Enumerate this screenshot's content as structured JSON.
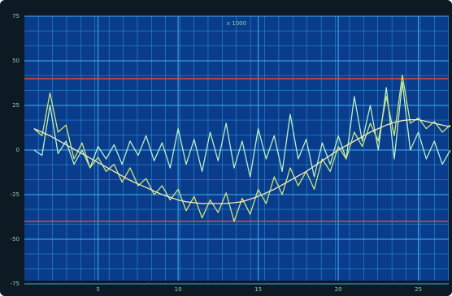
{
  "chart_data": {
    "type": "line",
    "title": "x 1000",
    "x": [
      1,
      1.5,
      2,
      2.5,
      3,
      3.5,
      4,
      4.5,
      5,
      5.5,
      6,
      6.5,
      7,
      7.5,
      8,
      8.5,
      9,
      9.5,
      10,
      10.5,
      11,
      11.5,
      12,
      12.5,
      13,
      13.5,
      14,
      14.5,
      15,
      15.5,
      16,
      16.5,
      17,
      17.5,
      18,
      18.5,
      19,
      19.5,
      20,
      20.5,
      21,
      21.5,
      22,
      22.5,
      23,
      23.5,
      24,
      24.5,
      25,
      25.5,
      26,
      26.5,
      27
    ],
    "series": [
      {
        "color": "#b6f0c8",
        "values": [
          0,
          -3,
          25,
          -2,
          5,
          -8,
          0,
          -10,
          2,
          -5,
          3,
          -8,
          5,
          -3,
          8,
          -6,
          4,
          -10,
          12,
          -8,
          6,
          -12,
          10,
          -6,
          15,
          -10,
          5,
          -15,
          12,
          -5,
          8,
          -12,
          20,
          -5,
          6,
          -15,
          4,
          -8,
          8,
          -5,
          30,
          5,
          25,
          0,
          35,
          -5,
          38,
          0,
          10,
          -5,
          5,
          -8,
          0
        ]
      },
      {
        "color": "#cde67a",
        "values": [
          12,
          8,
          32,
          10,
          14,
          -5,
          4,
          -10,
          -4,
          -12,
          -8,
          -18,
          -10,
          -20,
          -16,
          -25,
          -20,
          -28,
          -22,
          -34,
          -26,
          -38,
          -28,
          -35,
          -24,
          -40,
          -27,
          -36,
          -22,
          -30,
          -15,
          -25,
          -10,
          -20,
          -12,
          -22,
          -5,
          -12,
          2,
          -5,
          10,
          2,
          15,
          5,
          30,
          8,
          42,
          15,
          18,
          12,
          16,
          10,
          14
        ]
      },
      {
        "color": "#f2eebc",
        "values": [
          12,
          10,
          8,
          5.5,
          3,
          0.5,
          -2,
          -4.5,
          -7,
          -9.5,
          -12,
          -14.5,
          -17,
          -19,
          -21,
          -23,
          -25,
          -26.5,
          -28,
          -29,
          -29.5,
          -30,
          -30,
          -30,
          -30,
          -29.5,
          -29,
          -27.5,
          -26,
          -24,
          -22,
          -19.5,
          -17,
          -14.5,
          -12,
          -9,
          -6,
          -3,
          0,
          2.5,
          5,
          7.5,
          10,
          12,
          14,
          15.5,
          16.5,
          17,
          17,
          16,
          15,
          14,
          13
        ]
      }
    ],
    "hlines": [
      40,
      -40
    ],
    "hline_color": "#e8482c",
    "xlim": [
      0.4,
      26.9
    ],
    "xticks": [
      5,
      10,
      15,
      20,
      25
    ],
    "ylim": [
      -75,
      75
    ],
    "yticks": [
      -75,
      -50,
      -25,
      0,
      25,
      50,
      75
    ]
  }
}
